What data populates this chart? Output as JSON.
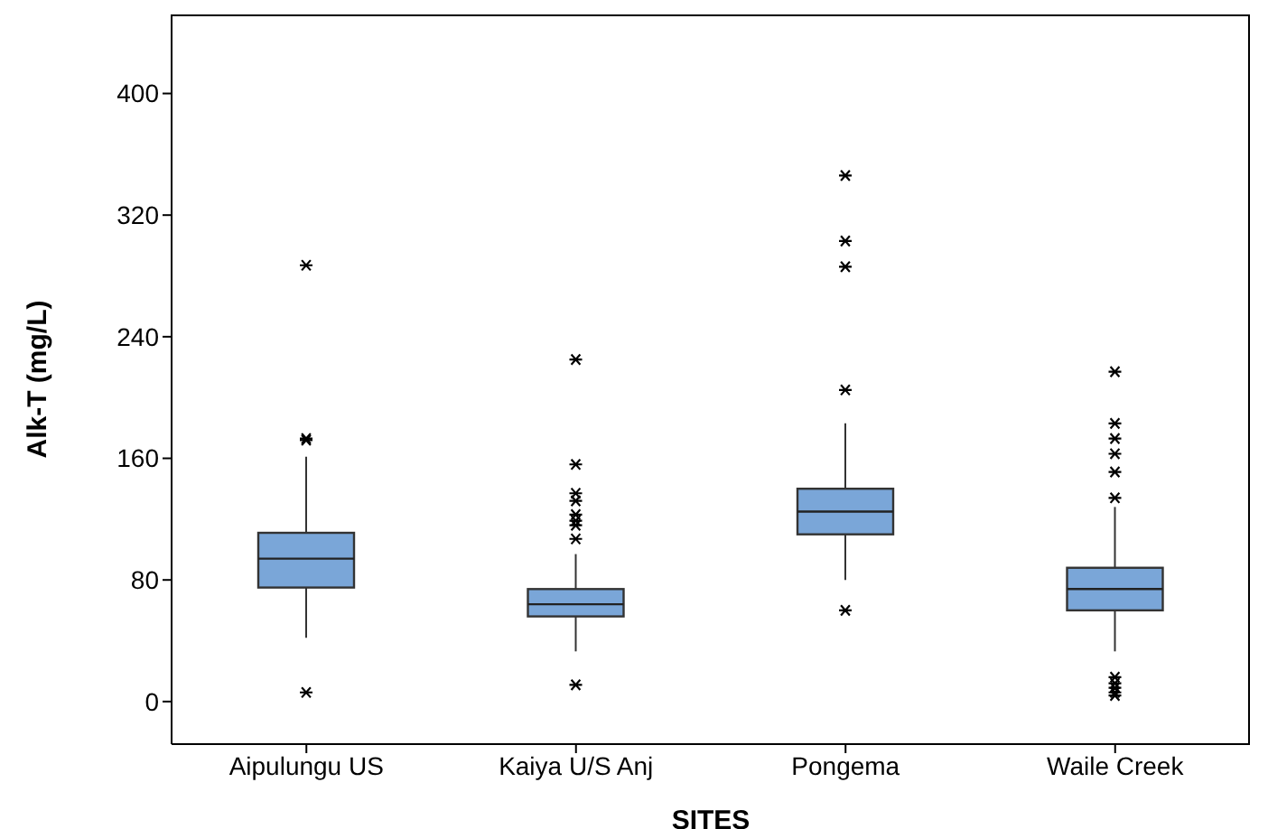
{
  "chart_data": {
    "type": "box",
    "xlabel": "SITES",
    "ylabel": "Alk-T (mg/L)",
    "categories": [
      "Aipulungu US",
      "Kaiya U/S Anj",
      "Pongema",
      "Waile Creek"
    ],
    "color": "#7aa6d8",
    "marker": "star",
    "ylim": [
      -28,
      452
    ],
    "yticks": [
      0,
      80,
      160,
      240,
      320,
      400
    ],
    "boxes": [
      {
        "low": 42,
        "q1": 75,
        "median": 94,
        "q3": 111,
        "high": 161,
        "outliers": [
          6,
          172,
          173,
          287
        ]
      },
      {
        "low": 33,
        "q1": 56,
        "median": 64,
        "q3": 74,
        "high": 97,
        "outliers": [
          11,
          107,
          116,
          119,
          123,
          132,
          137,
          156,
          225
        ]
      },
      {
        "low": 80,
        "q1": 110,
        "median": 125,
        "q3": 140,
        "high": 183,
        "outliers": [
          60,
          205,
          286,
          303,
          346
        ]
      },
      {
        "low": 33,
        "q1": 60,
        "median": 74,
        "q3": 88,
        "high": 128,
        "outliers": [
          4,
          6,
          9,
          12,
          16,
          134,
          151,
          163,
          173,
          183,
          217
        ]
      }
    ]
  }
}
